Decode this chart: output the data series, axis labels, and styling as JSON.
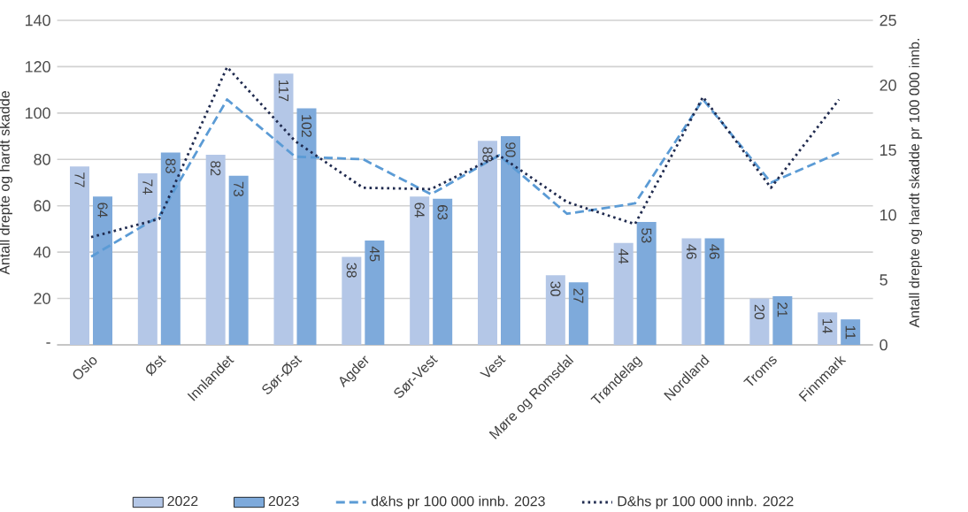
{
  "chart_data": {
    "type": "bar",
    "categories": [
      "Oslo",
      "Øst",
      "Innlandet",
      "Sør-Øst",
      "Agder",
      "Sør-Vest",
      "Vest",
      "Møre og Romsdal",
      "Trøndelag",
      "Nordland",
      "Troms",
      "Finnmark"
    ],
    "series": [
      {
        "name": "2022",
        "color": "#b4c7e7",
        "values": [
          77,
          74,
          82,
          117,
          38,
          64,
          88,
          30,
          44,
          46,
          20,
          14
        ],
        "value_labels": [
          "77",
          "74",
          "82",
          "117",
          "38",
          "64",
          "88",
          "30",
          "44",
          "46",
          "20",
          "14"
        ]
      },
      {
        "name": "2023",
        "color": "#7eaadb",
        "values": [
          64,
          83,
          73,
          102,
          45,
          63,
          90,
          27,
          53,
          46,
          21,
          11
        ],
        "value_labels": [
          "64",
          "83",
          "73",
          "102",
          "45",
          "63",
          "90",
          "27",
          "53",
          "46",
          "21",
          "11"
        ]
      },
      {
        "name": "d&hs pr 100 000 innb. 2023",
        "type": "line",
        "axis": "y2",
        "line_style": "dashed",
        "color": "#5b9bd5",
        "values": [
          6.8,
          9.9,
          18.9,
          14.5,
          14.3,
          11.6,
          14.6,
          10.1,
          10.9,
          18.9,
          12.5,
          14.8
        ]
      },
      {
        "name": "D&hs pr 100 000 innb. 2022",
        "type": "line",
        "axis": "y2",
        "line_style": "dotted",
        "color": "#1f2a4e",
        "values": [
          8.3,
          9.7,
          21.4,
          15.7,
          12.1,
          12.0,
          14.6,
          11.0,
          9.3,
          19.1,
          12.1,
          18.9
        ]
      }
    ],
    "ylabel": "Antall drepte og hardt skadde",
    "y2label": "Antall drepte og hardt skadde pr 100 000 innb.",
    "ylim": [
      0,
      140
    ],
    "yticks": [
      {
        "value": 0,
        "label": "-"
      },
      20,
      40,
      60,
      80,
      100,
      120,
      140
    ],
    "y2lim": [
      0,
      25
    ],
    "y2ticks": [
      0,
      5,
      10,
      15,
      20,
      25
    ],
    "grid": "y",
    "legend": "bottom"
  }
}
